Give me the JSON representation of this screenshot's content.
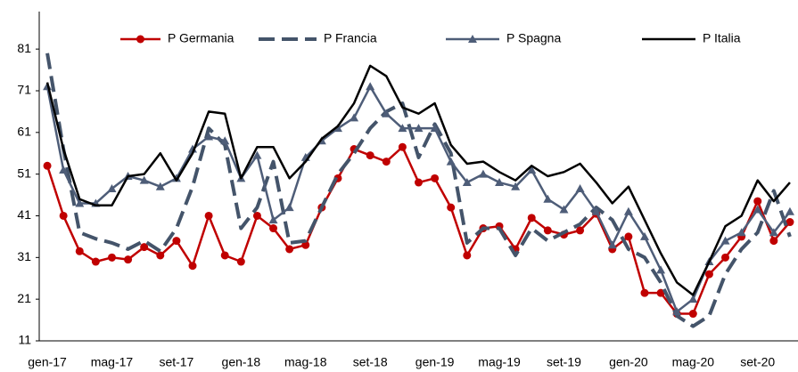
{
  "chart_data": {
    "type": "line",
    "categories": [
      "gen-17",
      null,
      null,
      null,
      "mag-17",
      null,
      null,
      null,
      "set-17",
      null,
      null,
      null,
      "gen-18",
      null,
      null,
      null,
      "mag-18",
      null,
      null,
      null,
      "set-18",
      null,
      null,
      null,
      "gen-19",
      null,
      null,
      null,
      "mag-19",
      null,
      null,
      null,
      "set-19",
      null,
      null,
      null,
      "gen-20",
      null,
      null,
      null,
      "mag-20",
      null,
      null,
      null,
      "set-20",
      null,
      null
    ],
    "series": [
      {
        "name": "P Germania",
        "color": "#c00000",
        "marker": "circle",
        "dash": false,
        "values": [
          53,
          41,
          32.5,
          30,
          31,
          30.5,
          33.5,
          31.5,
          35,
          29,
          41,
          31.5,
          30,
          41,
          38,
          33,
          34,
          43,
          50,
          57,
          55.5,
          54,
          57.5,
          49,
          50,
          43,
          31.5,
          38,
          38.5,
          33,
          40.5,
          37.5,
          36.5,
          37.5,
          41.5,
          33,
          36,
          22.5,
          22.5,
          17.5,
          17.5,
          27,
          31,
          36,
          44.5,
          35,
          39.5
        ]
      },
      {
        "name": "P Francia",
        "color": "#44546a",
        "marker": "none",
        "dash": true,
        "values": [
          80,
          57,
          37,
          35.5,
          34.5,
          33,
          35,
          32.5,
          38,
          48,
          62,
          58,
          38,
          43,
          54,
          34.5,
          35,
          43,
          51,
          56,
          62,
          66,
          68,
          55,
          63,
          56,
          34.5,
          38,
          38,
          31.5,
          38,
          35,
          37,
          39,
          43,
          40,
          33,
          31,
          25,
          17,
          14.5,
          17,
          27,
          33,
          37,
          47,
          36
        ]
      },
      {
        "name": "P Spagna",
        "color": "#4e5d78",
        "marker": "triangle",
        "dash": false,
        "values": [
          72,
          52,
          44,
          44,
          47.5,
          50.5,
          49.5,
          48,
          50,
          57,
          60,
          59,
          50,
          55.5,
          40,
          43,
          55,
          59,
          62,
          64.5,
          72,
          65.5,
          62,
          62,
          62,
          54,
          49,
          51,
          49,
          48,
          52,
          45,
          42.5,
          47.5,
          42,
          34,
          42,
          36,
          28,
          18,
          21,
          30,
          35,
          37,
          42.5,
          37,
          42
        ]
      },
      {
        "name": "P Italia",
        "color": "#000000",
        "marker": "none",
        "dash": false,
        "values": [
          73,
          57,
          45,
          43.5,
          43.5,
          50.5,
          51,
          56,
          49.5,
          56,
          66,
          65.5,
          50,
          57.5,
          57.5,
          50,
          54,
          59.5,
          62.5,
          68,
          77,
          74.5,
          67,
          65.5,
          68,
          58,
          53.5,
          54,
          51.5,
          49.5,
          53,
          50.5,
          51.5,
          53.5,
          49,
          44,
          48,
          40,
          32,
          25,
          22,
          30,
          38.5,
          41,
          49.5,
          44.5,
          49
        ]
      }
    ],
    "ylim": [
      11,
      90
    ],
    "yticks": [
      11,
      21,
      31,
      41,
      51,
      61,
      71,
      81
    ],
    "legend": "top"
  }
}
